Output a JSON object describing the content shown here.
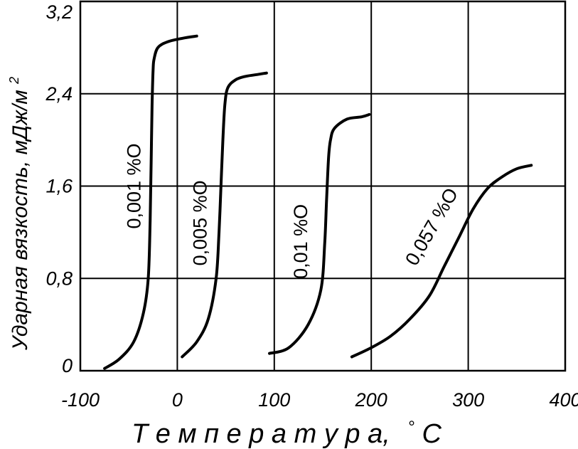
{
  "chart_data": {
    "type": "line",
    "xlabel": "Т е м п е р а т у р а,",
    "xlabel_unit": "°C",
    "ylabel": "Ударная вязкость, мДж/м",
    "ylabel_sup": "2",
    "xlim": [
      -100,
      400
    ],
    "ylim": [
      0,
      3.2
    ],
    "grid": true,
    "x_ticks": [
      {
        "value": -100,
        "label": "-100"
      },
      {
        "value": 0,
        "label": "0"
      },
      {
        "value": 100,
        "label": "100"
      },
      {
        "value": 200,
        "label": "200"
      },
      {
        "value": 300,
        "label": "300"
      },
      {
        "value": 400,
        "label": "400"
      }
    ],
    "y_ticks": [
      {
        "value": 0,
        "label": "0"
      },
      {
        "value": 0.8,
        "label": "0,8"
      },
      {
        "value": 1.6,
        "label": "1,6"
      },
      {
        "value": 2.4,
        "label": "2,4"
      },
      {
        "value": 3.2,
        "label": "3,2"
      }
    ],
    "series": [
      {
        "name": "0,001 %O",
        "x": [
          -75,
          -60,
          -45,
          -35,
          -30,
          -28,
          -27,
          -26,
          -25,
          -24,
          -20,
          -10,
          5,
          20
        ],
        "y": [
          0.02,
          0.1,
          0.25,
          0.5,
          0.8,
          1.3,
          1.8,
          2.3,
          2.6,
          2.7,
          2.8,
          2.85,
          2.88,
          2.9
        ]
      },
      {
        "name": "0,005 %O",
        "x": [
          5,
          20,
          32,
          40,
          43,
          45,
          47,
          49,
          52,
          60,
          70,
          85,
          92
        ],
        "y": [
          0.12,
          0.25,
          0.45,
          0.8,
          1.2,
          1.6,
          2.0,
          2.3,
          2.45,
          2.52,
          2.55,
          2.57,
          2.58
        ]
      },
      {
        "name": "0,01 %O",
        "x": [
          95,
          115,
          135,
          148,
          152,
          154,
          156,
          158,
          162,
          175,
          190,
          198
        ],
        "y": [
          0.15,
          0.2,
          0.4,
          0.7,
          1.1,
          1.5,
          1.85,
          2.0,
          2.1,
          2.18,
          2.2,
          2.22
        ]
      },
      {
        "name": "0,057 %O",
        "x": [
          180,
          200,
          220,
          240,
          260,
          275,
          290,
          305,
          320,
          335,
          350,
          365
        ],
        "y": [
          0.12,
          0.2,
          0.3,
          0.45,
          0.65,
          0.9,
          1.15,
          1.4,
          1.58,
          1.68,
          1.75,
          1.78
        ]
      }
    ]
  }
}
